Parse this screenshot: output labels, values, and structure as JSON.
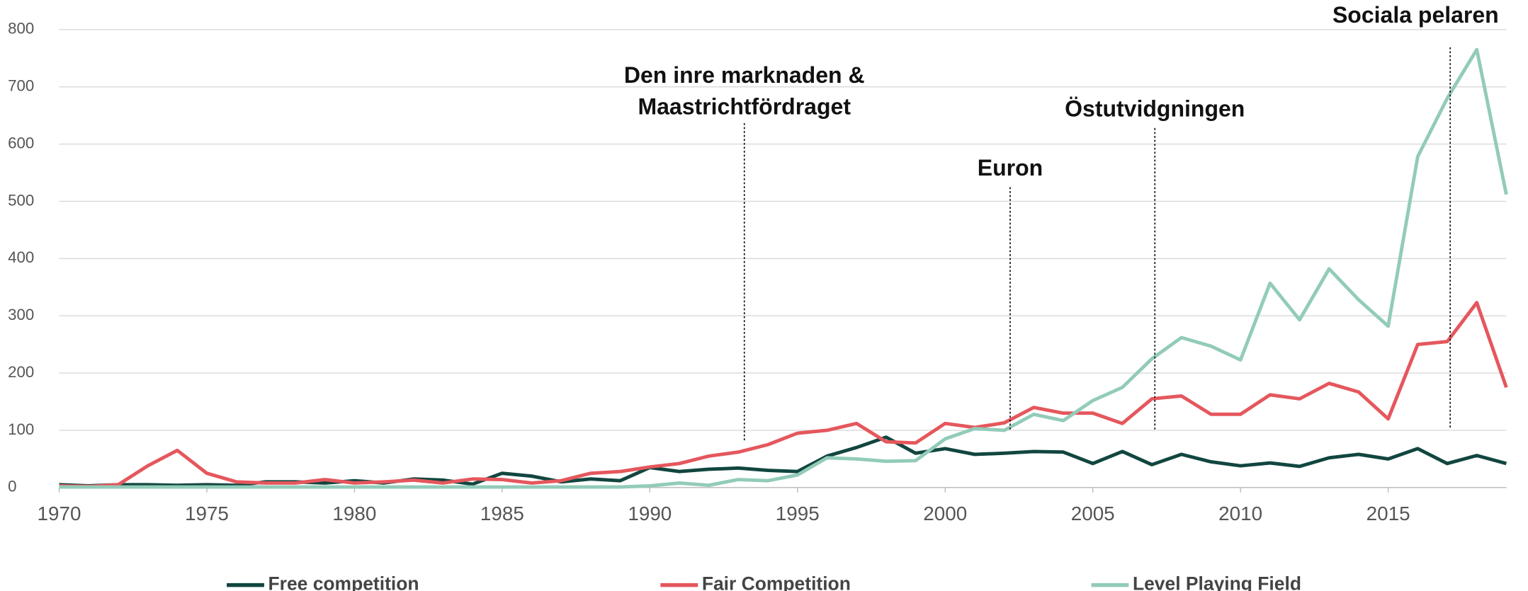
{
  "chart_data": {
    "type": "line",
    "x": [
      1970,
      1971,
      1972,
      1973,
      1974,
      1975,
      1976,
      1977,
      1978,
      1979,
      1980,
      1981,
      1982,
      1983,
      1984,
      1985,
      1986,
      1987,
      1988,
      1989,
      1990,
      1991,
      1992,
      1993,
      1994,
      1995,
      1996,
      1997,
      1998,
      1999,
      2000,
      2001,
      2002,
      2003,
      2004,
      2005,
      2006,
      2007,
      2008,
      2009,
      2010,
      2011,
      2012,
      2013,
      2014,
      2015,
      2016,
      2017,
      2018,
      2019
    ],
    "series": [
      {
        "name": "Free competition",
        "color": "#11463f",
        "values": [
          5,
          3,
          5,
          5,
          4,
          5,
          4,
          10,
          10,
          8,
          12,
          8,
          15,
          13,
          6,
          25,
          20,
          10,
          15,
          12,
          35,
          28,
          32,
          34,
          30,
          28,
          55,
          70,
          88,
          60,
          68,
          58,
          60,
          63,
          62,
          42,
          63,
          40,
          58,
          45,
          38,
          43,
          37,
          52,
          58,
          50,
          68,
          42,
          56,
          42
        ]
      },
      {
        "name": "Fair Competition",
        "color": "#e5575d",
        "values": [
          3,
          2,
          5,
          38,
          65,
          25,
          10,
          8,
          8,
          14,
          8,
          10,
          13,
          8,
          15,
          14,
          8,
          12,
          25,
          28,
          36,
          42,
          55,
          62,
          75,
          95,
          100,
          112,
          80,
          78,
          112,
          105,
          113,
          140,
          130,
          130,
          112,
          155,
          160,
          128,
          128,
          162,
          155,
          182,
          167,
          120,
          250,
          255,
          323,
          175
        ]
      },
      {
        "name": "Level Playing Field",
        "color": "#92cbb9",
        "values": [
          1,
          1,
          1,
          1,
          1,
          1,
          1,
          1,
          1,
          1,
          1,
          1,
          1,
          1,
          1,
          1,
          1,
          1,
          1,
          1,
          3,
          8,
          4,
          14,
          12,
          22,
          52,
          50,
          46,
          47,
          85,
          103,
          100,
          128,
          117,
          152,
          175,
          225,
          262,
          247,
          223,
          357,
          293,
          382,
          328,
          282,
          578,
          680,
          765,
          512
        ]
      }
    ],
    "xlim": [
      1970,
      2019
    ],
    "xticks": [
      1970,
      1975,
      1980,
      1985,
      1990,
      1995,
      2000,
      2005,
      2010,
      2015
    ],
    "ylim": [
      0,
      800
    ],
    "yticks": [
      0,
      100,
      200,
      300,
      400,
      500,
      600,
      700,
      800
    ],
    "grid": true,
    "annotations": [
      {
        "x": 1993.2,
        "lines": [
          "Den inre marknaden &",
          "Maastrichtfördraget"
        ]
      },
      {
        "x": 2002.2,
        "lines": [
          "Euron"
        ]
      },
      {
        "x": 2007.1,
        "lines": [
          "Östutvidgningen"
        ]
      },
      {
        "x": 2017.1,
        "lines": [
          "Sociala pelaren"
        ]
      }
    ]
  }
}
